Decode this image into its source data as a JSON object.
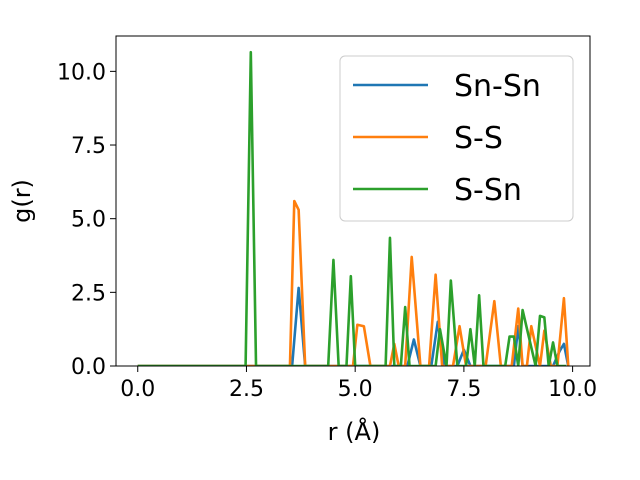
{
  "chart_data": {
    "type": "line",
    "xlabel": "r (Å)",
    "ylabel": "g(r)",
    "xlim": [
      -0.5,
      10.4
    ],
    "ylim": [
      0,
      11.2
    ],
    "x_ticks": [
      "0.0",
      "2.5",
      "5.0",
      "7.5",
      "10.0"
    ],
    "y_ticks": [
      "0.0",
      "2.5",
      "5.0",
      "7.5",
      "10.0"
    ],
    "legend_position": "top-right",
    "series": [
      {
        "name": "Sn-Sn",
        "color": "#1f77b4",
        "x": [
          0.0,
          3.55,
          3.7,
          3.85,
          6.2,
          6.35,
          6.5,
          6.75,
          6.9,
          7.05,
          7.35,
          7.5,
          7.65,
          8.65,
          8.75,
          8.85,
          9.55,
          9.7,
          9.8,
          9.9
        ],
        "y": [
          0.0,
          0.0,
          2.65,
          0.0,
          0.0,
          0.9,
          0.0,
          0.0,
          1.5,
          0.0,
          0.0,
          0.55,
          0.0,
          0.0,
          1.35,
          0.0,
          0.0,
          0.5,
          0.75,
          0.0
        ]
      },
      {
        "name": "S-S",
        "color": "#ff7f0e",
        "x": [
          0.0,
          3.5,
          3.6,
          3.7,
          3.85,
          4.95,
          5.05,
          5.2,
          5.35,
          5.8,
          5.9,
          6.0,
          6.15,
          6.3,
          6.5,
          6.7,
          6.85,
          7.0,
          7.25,
          7.4,
          7.55,
          7.85,
          8.0,
          8.2,
          8.35,
          8.6,
          8.75,
          8.85,
          8.95,
          9.05,
          9.25,
          9.35,
          9.5,
          9.65,
          9.8,
          9.9
        ],
        "y": [
          0.0,
          0.0,
          5.6,
          5.3,
          0.0,
          0.0,
          1.4,
          1.35,
          0.0,
          0.0,
          0.75,
          0.0,
          0.0,
          3.7,
          0.0,
          0.0,
          3.1,
          0.0,
          0.0,
          1.35,
          0.0,
          0.0,
          0.0,
          2.2,
          0.0,
          0.0,
          1.95,
          0.0,
          0.0,
          1.35,
          0.0,
          1.2,
          0.0,
          0.0,
          2.3,
          0.0
        ]
      },
      {
        "name": "S-Sn",
        "color": "#2ca02c",
        "x": [
          0.0,
          2.48,
          2.6,
          2.72,
          4.38,
          4.5,
          4.62,
          4.8,
          4.9,
          5.0,
          5.7,
          5.8,
          5.9,
          6.05,
          6.15,
          6.25,
          6.85,
          6.95,
          7.1,
          7.2,
          7.35,
          7.55,
          7.65,
          7.75,
          7.85,
          7.95,
          8.45,
          8.55,
          8.65,
          8.75,
          8.85,
          9.15,
          9.25,
          9.35,
          9.45,
          9.55,
          9.65,
          9.75,
          9.85
        ],
        "y": [
          0.0,
          0.0,
          10.65,
          0.0,
          0.0,
          3.6,
          0.0,
          0.0,
          3.05,
          0.0,
          0.0,
          4.35,
          0.0,
          0.0,
          2.0,
          0.0,
          0.0,
          1.25,
          0.0,
          2.9,
          0.0,
          0.0,
          1.25,
          0.0,
          2.4,
          0.0,
          0.0,
          1.0,
          1.0,
          0.0,
          1.9,
          0.0,
          1.7,
          1.65,
          0.0,
          0.8,
          0.0,
          0.0,
          0.0
        ]
      }
    ]
  }
}
